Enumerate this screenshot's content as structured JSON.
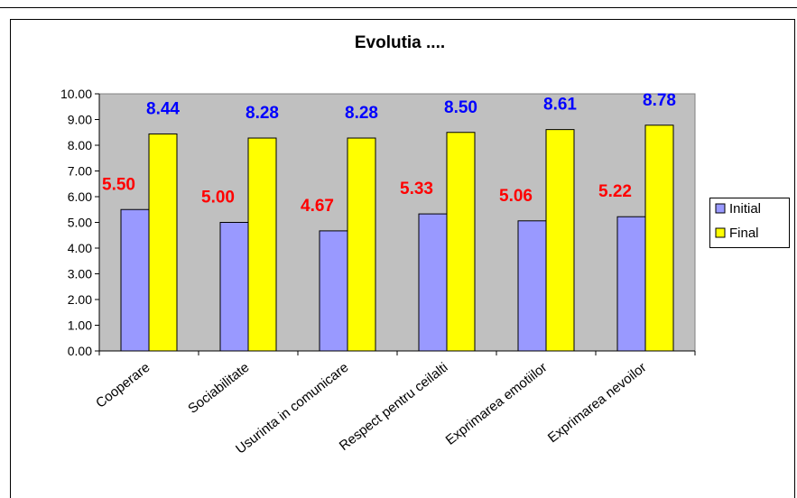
{
  "chart_data": {
    "type": "bar",
    "title": "Evolutia ....",
    "xlabel": "",
    "ylabel": "",
    "ylim": [
      0,
      10
    ],
    "yticks": [
      "0.00",
      "1.00",
      "2.00",
      "3.00",
      "4.00",
      "5.00",
      "6.00",
      "7.00",
      "8.00",
      "9.00",
      "10.00"
    ],
    "grid": false,
    "legend_position": "right",
    "categories": [
      "Cooperare",
      "Sociabilitate",
      "Usurinta in comunicare",
      "Respect pentru ceilalti",
      "Exprimarea emotiilor",
      "Exprimarea nevoilor"
    ],
    "series": [
      {
        "name": "Initial",
        "color": "#9999ff",
        "label_color": "#ff0000",
        "values": [
          5.5,
          5.0,
          4.67,
          5.33,
          5.06,
          5.22
        ],
        "labels": [
          "5.50",
          "5.00",
          "4.67",
          "5.33",
          "5.06",
          "5.22"
        ]
      },
      {
        "name": "Final",
        "color": "#ffff00",
        "label_color": "#0000ff",
        "values": [
          8.44,
          8.28,
          8.28,
          8.5,
          8.61,
          8.78
        ],
        "labels": [
          "8.44",
          "8.28",
          "8.28",
          "8.50",
          "8.61",
          "8.78"
        ]
      }
    ],
    "plot_background": "#c0c0c0"
  }
}
